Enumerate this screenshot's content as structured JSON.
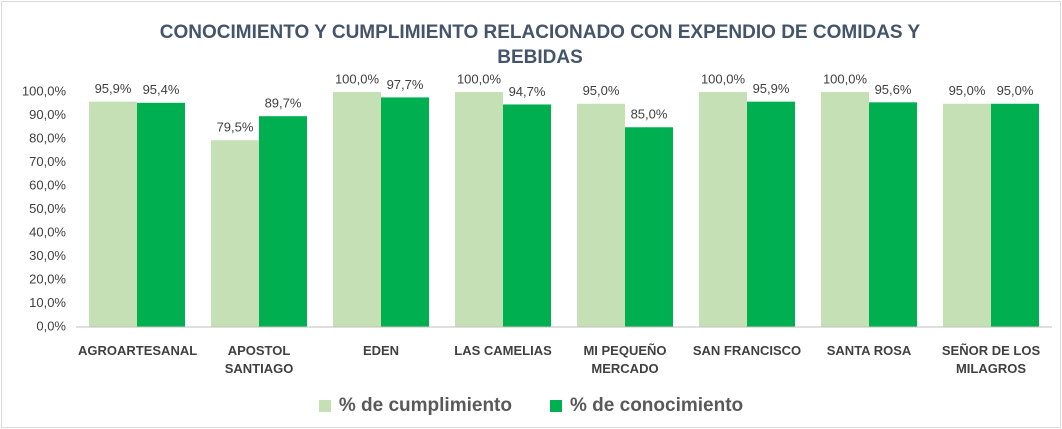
{
  "chart_data": {
    "type": "bar",
    "title": "CONOCIMIENTO Y CUMPLIMIENTO RELACIONADO CON EXPENDIO DE COMIDAS Y BEBIDAS",
    "categories": [
      "AGROARTESANAL",
      "APOSTOL SANTIAGO",
      "EDEN",
      "LAS CAMELIAS",
      "MI PEQUEÑO MERCADO",
      "SAN FRANCISCO",
      "SANTA ROSA",
      "SEÑOR DE LOS MILAGROS"
    ],
    "series": [
      {
        "name": "% de cumplimiento",
        "color": "#c5e0b4",
        "values": [
          95.9,
          79.5,
          100,
          100,
          95,
          100,
          100,
          95
        ],
        "value_labels": [
          "95,9%",
          "79,5%",
          "100,0%",
          "100,0%",
          "95,0%",
          "100,0%",
          "100,0%",
          "95,0%"
        ]
      },
      {
        "name": "% de conocimiento",
        "color": "#00b050",
        "values": [
          95.4,
          89.7,
          97.7,
          94.7,
          85,
          95.9,
          95.6,
          95
        ],
        "value_labels": [
          "95,4%",
          "89,7%",
          "97,7%",
          "94,7%",
          "85,0%",
          "95,9%",
          "95,6%",
          "95,0%"
        ]
      }
    ],
    "ylim": [
      0,
      100
    ],
    "yticks": [
      {
        "value": 0,
        "label": "0,0%"
      },
      {
        "value": 10,
        "label": "10,0%"
      },
      {
        "value": 20,
        "label": "20,0%"
      },
      {
        "value": 30,
        "label": "30,0%"
      },
      {
        "value": 40,
        "label": "40,0%"
      },
      {
        "value": 50,
        "label": "50,0%"
      },
      {
        "value": 60,
        "label": "60,0%"
      },
      {
        "value": 70,
        "label": "70,0%"
      },
      {
        "value": 80,
        "label": "80,0%"
      },
      {
        "value": 90,
        "label": "90,0%"
      },
      {
        "value": 100,
        "label": "100,0%"
      }
    ],
    "grid": false,
    "legend": "bottom"
  }
}
